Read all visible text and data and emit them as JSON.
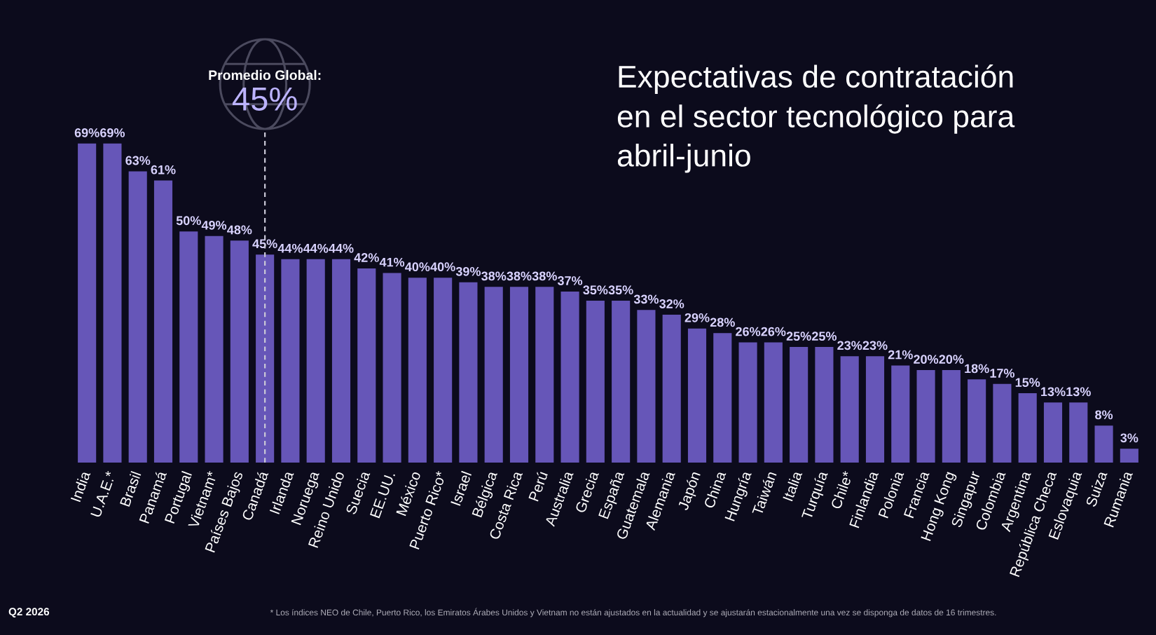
{
  "chart_data": {
    "type": "bar",
    "title": "Expectativas de contratación\nen el sector tecnológico para\nabril-junio",
    "categories": [
      "India",
      "U.A.E.*",
      "Brasil",
      "Panamá",
      "Portugal",
      "Vietnam*",
      "Países Bajos",
      "Canadá",
      "Irlanda",
      "Noruega",
      "Reino Unido",
      "Suecia",
      "EE.UU.",
      "México",
      "Puerto Rico*",
      "Israel",
      "Bélgica",
      "Costa Rica",
      "Perú",
      "Australia",
      "Grecia",
      "España",
      "Guatemala",
      "Alemania",
      "Japón",
      "China",
      "Hungría",
      "Taiwán",
      "Italia",
      "Turquía",
      "Chile*",
      "Finlandia",
      "Polonia",
      "Francia",
      "Hong Kong",
      "Singapur",
      "Colombia",
      "Argentina",
      "República Checa",
      "Eslovaquia",
      "Suiza",
      "Rumania"
    ],
    "values": [
      69,
      69,
      63,
      61,
      50,
      49,
      48,
      45,
      44,
      44,
      44,
      42,
      41,
      40,
      40,
      39,
      38,
      38,
      38,
      37,
      35,
      35,
      33,
      32,
      29,
      28,
      26,
      26,
      25,
      25,
      23,
      23,
      21,
      20,
      20,
      18,
      17,
      15,
      13,
      13,
      8,
      3
    ],
    "value_labels": [
      "69%",
      "69%",
      "63%",
      "61%",
      "50%",
      "49%",
      "48%",
      "45%",
      "44%",
      "44%",
      "44%",
      "42%",
      "41%",
      "40%",
      "40%",
      "39%",
      "38%",
      "38%",
      "38%",
      "37%",
      "35%",
      "35%",
      "33%",
      "32%",
      "29%",
      "28%",
      "26%",
      "26%",
      "25%",
      "25%",
      "23%",
      "23%",
      "21%",
      "20%",
      "20%",
      "18%",
      "17%",
      "15%",
      "13%",
      "13%",
      "8%",
      "3%"
    ],
    "color": "#6656b8",
    "ref_lines": [
      {
        "axis": "x",
        "value": "Canadá",
        "label": "Promedio Global:\n45%",
        "line_style": "dashed",
        "color": "#c9c7d6"
      }
    ],
    "annotations": [
      "Q2 2026",
      "* Los índices NEO de Chile, Puerto Rico, los Emiratos Árabes Unidos y Vietnam no están ajustados en la actualidad y se ajustarán estacionalmente una vez se disponga de datos de 16 trimestres."
    ]
  }
}
